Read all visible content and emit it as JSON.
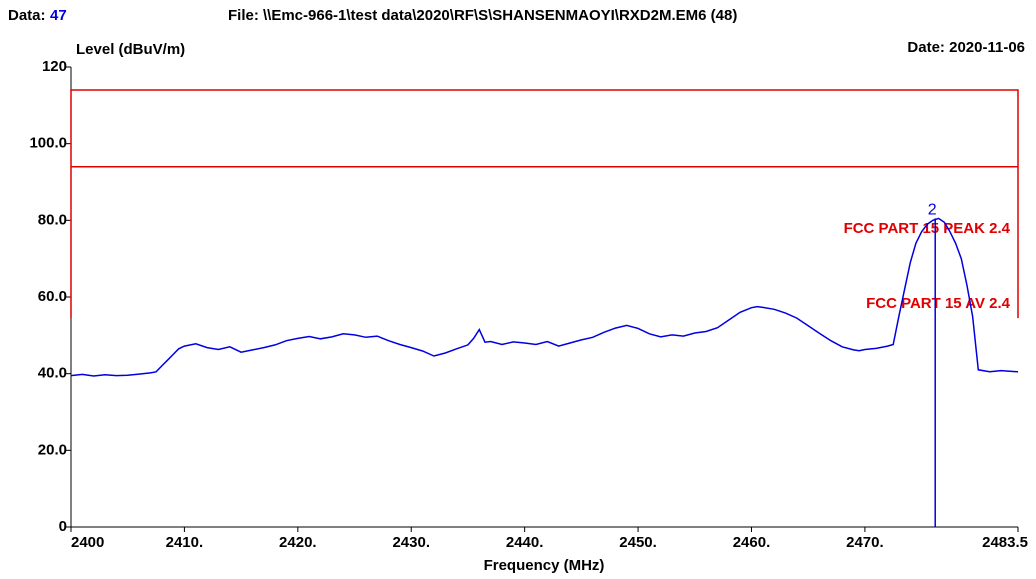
{
  "chart_data": {
    "type": "line",
    "data_label": "Data:",
    "data_number": "47",
    "file": "File: \\\\Emc-966-1\\test data\\2020\\RF\\S\\SHANSENMAOYI\\RXD2M.EM6  (48)",
    "date": "Date: 2020-11-06",
    "y_label": "Level (dBuV/m)",
    "x_label": "Frequency (MHz)",
    "xlim": [
      2400,
      2483.5
    ],
    "ylim": [
      0,
      120
    ],
    "xticks": [
      2400,
      {
        "value": 2410,
        "label": "2410."
      },
      {
        "value": 2420,
        "label": "2420."
      },
      {
        "value": 2430,
        "label": "2430."
      },
      {
        "value": 2440,
        "label": "2440."
      },
      {
        "value": 2450,
        "label": "2450."
      },
      {
        "value": 2460,
        "label": "2460."
      },
      {
        "value": 2470,
        "label": "2470."
      },
      2483.5
    ],
    "yticks": [
      0,
      {
        "value": 20,
        "label": "20.0"
      },
      {
        "value": 40,
        "label": "40.0"
      },
      {
        "value": 60,
        "label": "60.0"
      },
      {
        "value": 80,
        "label": "80.0"
      },
      {
        "value": 100,
        "label": "100.0"
      },
      120
    ],
    "series": [
      {
        "name": "FCC PART 15 PEAK 2.4",
        "color": "#e00000",
        "x": [
          2400,
          2400,
          2483.5,
          2483.5
        ],
        "values": [
          54.5,
          114,
          114,
          54.5
        ]
      },
      {
        "name": "FCC PART 15 AV 2.4",
        "color": "#e00000",
        "x": [
          2400,
          2483.5
        ],
        "values": [
          94,
          94
        ]
      },
      {
        "name": null,
        "color": "#0000e0",
        "x": [
          2400,
          2401,
          2402,
          2403,
          2404,
          2405,
          2406,
          2407,
          2407.5,
          2408,
          2408.5,
          2409,
          2409.5,
          2410,
          2411,
          2412,
          2413,
          2414,
          2415,
          2416,
          2417,
          2418,
          2419,
          2420,
          2421,
          2422,
          2423,
          2424,
          2425,
          2426,
          2427,
          2428,
          2429,
          2430,
          2431,
          2432,
          2433,
          2434,
          2435,
          2435.5,
          2436,
          2436.5,
          2437,
          2438,
          2439,
          2440,
          2441,
          2442,
          2443,
          2444,
          2445,
          2446,
          2447,
          2448,
          2449,
          2450,
          2451,
          2452,
          2453,
          2454,
          2455,
          2456,
          2457,
          2458,
          2459,
          2460,
          2460.5,
          2461,
          2462,
          2463,
          2464,
          2465,
          2466,
          2467,
          2468,
          2469,
          2469.5,
          2470,
          2471,
          2472,
          2472.5,
          2473,
          2473.5,
          2474,
          2474.5,
          2475,
          2475.5,
          2476,
          2476.5,
          2477,
          2477.5,
          2478,
          2478.5,
          2479,
          2479.5,
          2480,
          2481,
          2482,
          2483.5
        ],
        "values": [
          39.5,
          39.8,
          39.4,
          39.7,
          39.5,
          39.6,
          39.9,
          40.2,
          40.5,
          42,
          43.5,
          45,
          46.5,
          47.2,
          47.8,
          46.8,
          46.3,
          47,
          45.6,
          46.2,
          46.8,
          47.5,
          48.6,
          49.2,
          49.7,
          49.1,
          49.6,
          50.4,
          50.1,
          49.5,
          49.8,
          48.6,
          47.6,
          46.8,
          45.9,
          44.6,
          45.4,
          46.5,
          47.5,
          49.2,
          51.5,
          48.2,
          48.4,
          47.6,
          48.3,
          48.0,
          47.6,
          48.4,
          47.2,
          48.0,
          48.8,
          49.5,
          50.8,
          51.9,
          52.6,
          51.8,
          50.4,
          49.6,
          50.1,
          49.8,
          50.6,
          51.0,
          52.0,
          54.0,
          56.0,
          57.2,
          57.5,
          57.3,
          56.8,
          55.8,
          54.5,
          52.5,
          50.5,
          48.6,
          47.0,
          46.2,
          46.0,
          46.3,
          46.6,
          47.2,
          47.6,
          55.0,
          62.0,
          69.0,
          74.0,
          77.0,
          79.0,
          80.0,
          80.5,
          79.5,
          77.0,
          74.0,
          70.0,
          63.0,
          55.0,
          41.0,
          40.5,
          40.8,
          40.5
        ]
      }
    ],
    "markers": [
      {
        "label": "2",
        "x": 2476.2,
        "value": 80.5
      }
    ]
  }
}
